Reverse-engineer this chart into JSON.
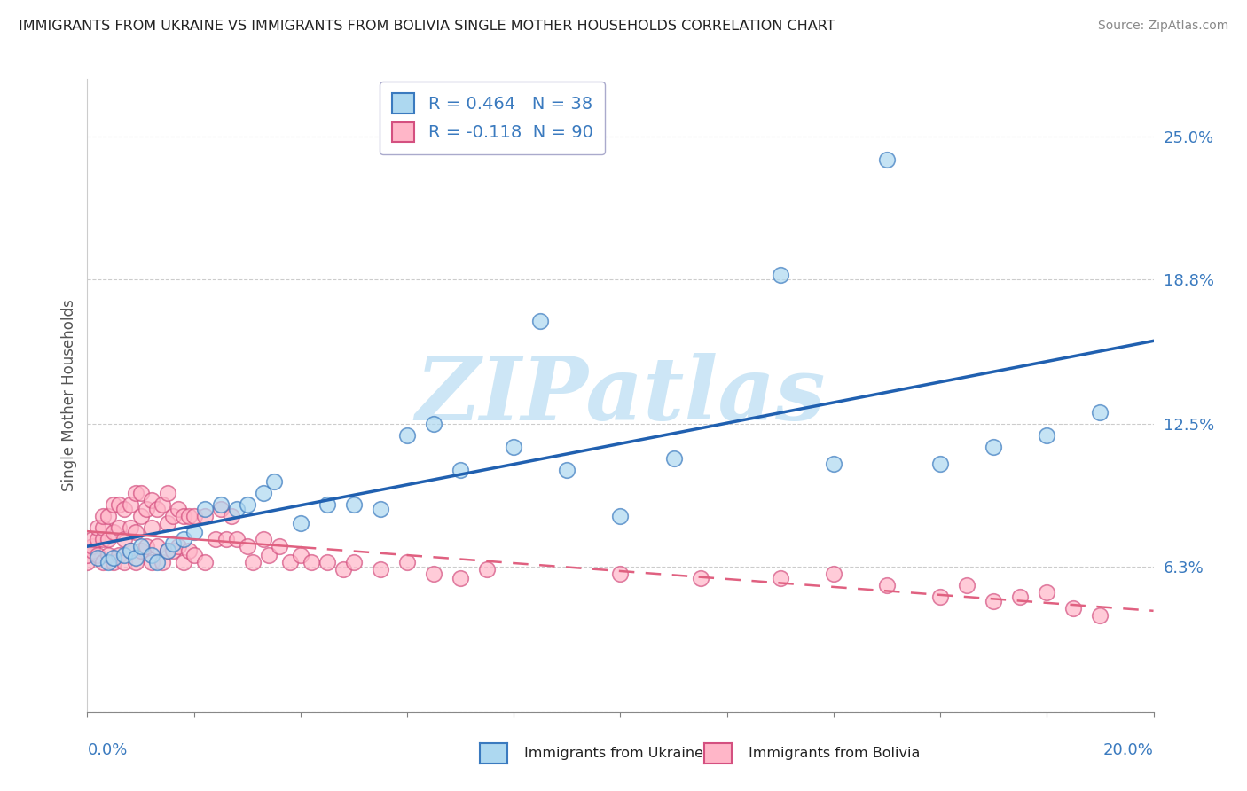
{
  "title": "IMMIGRANTS FROM UKRAINE VS IMMIGRANTS FROM BOLIVIA SINGLE MOTHER HOUSEHOLDS CORRELATION CHART",
  "source": "Source: ZipAtlas.com",
  "ylabel": "Single Mother Households",
  "xlim": [
    0.0,
    0.2
  ],
  "ylim": [
    0.0,
    0.275
  ],
  "ytick_vals": [
    0.0,
    0.063,
    0.125,
    0.188,
    0.25
  ],
  "ytick_labels": [
    "",
    "6.3%",
    "12.5%",
    "18.8%",
    "25.0%"
  ],
  "ukraine_R": 0.464,
  "ukraine_N": 38,
  "bolivia_R": -0.118,
  "bolivia_N": 90,
  "ukraine_color": "#add8f0",
  "bolivia_color": "#ffb6c8",
  "ukraine_edge_color": "#3a7abf",
  "bolivia_edge_color": "#d45080",
  "ukraine_line_color": "#2060b0",
  "bolivia_line_color": "#e06080",
  "watermark_text": "ZIPatlas",
  "ukraine_x": [
    0.002,
    0.004,
    0.005,
    0.007,
    0.008,
    0.009,
    0.01,
    0.012,
    0.013,
    0.015,
    0.016,
    0.018,
    0.02,
    0.022,
    0.025,
    0.028,
    0.03,
    0.033,
    0.035,
    0.04,
    0.045,
    0.05,
    0.055,
    0.06,
    0.065,
    0.07,
    0.08,
    0.085,
    0.09,
    0.1,
    0.11,
    0.13,
    0.14,
    0.15,
    0.16,
    0.17,
    0.18,
    0.19
  ],
  "ukraine_y": [
    0.067,
    0.065,
    0.067,
    0.068,
    0.07,
    0.067,
    0.072,
    0.068,
    0.065,
    0.07,
    0.073,
    0.075,
    0.078,
    0.088,
    0.09,
    0.088,
    0.09,
    0.095,
    0.1,
    0.082,
    0.09,
    0.09,
    0.088,
    0.12,
    0.125,
    0.105,
    0.115,
    0.17,
    0.105,
    0.085,
    0.11,
    0.19,
    0.108,
    0.24,
    0.108,
    0.115,
    0.12,
    0.13
  ],
  "bolivia_x": [
    0.0,
    0.0,
    0.001,
    0.001,
    0.001,
    0.002,
    0.002,
    0.002,
    0.003,
    0.003,
    0.003,
    0.003,
    0.004,
    0.004,
    0.004,
    0.005,
    0.005,
    0.005,
    0.006,
    0.006,
    0.006,
    0.007,
    0.007,
    0.007,
    0.008,
    0.008,
    0.008,
    0.009,
    0.009,
    0.009,
    0.01,
    0.01,
    0.01,
    0.011,
    0.011,
    0.012,
    0.012,
    0.012,
    0.013,
    0.013,
    0.014,
    0.014,
    0.015,
    0.015,
    0.015,
    0.016,
    0.016,
    0.017,
    0.017,
    0.018,
    0.018,
    0.019,
    0.019,
    0.02,
    0.02,
    0.022,
    0.022,
    0.024,
    0.025,
    0.026,
    0.027,
    0.028,
    0.03,
    0.031,
    0.033,
    0.034,
    0.036,
    0.038,
    0.04,
    0.042,
    0.045,
    0.048,
    0.05,
    0.055,
    0.06,
    0.065,
    0.07,
    0.075,
    0.1,
    0.115,
    0.13,
    0.14,
    0.15,
    0.16,
    0.165,
    0.17,
    0.175,
    0.18,
    0.185,
    0.19
  ],
  "bolivia_y": [
    0.065,
    0.068,
    0.07,
    0.072,
    0.075,
    0.068,
    0.075,
    0.08,
    0.065,
    0.075,
    0.08,
    0.085,
    0.068,
    0.075,
    0.085,
    0.065,
    0.078,
    0.09,
    0.068,
    0.08,
    0.09,
    0.065,
    0.075,
    0.088,
    0.07,
    0.08,
    0.09,
    0.065,
    0.078,
    0.095,
    0.07,
    0.085,
    0.095,
    0.072,
    0.088,
    0.065,
    0.08,
    0.092,
    0.072,
    0.088,
    0.065,
    0.09,
    0.07,
    0.082,
    0.095,
    0.07,
    0.085,
    0.072,
    0.088,
    0.065,
    0.085,
    0.07,
    0.085,
    0.068,
    0.085,
    0.065,
    0.085,
    0.075,
    0.088,
    0.075,
    0.085,
    0.075,
    0.072,
    0.065,
    0.075,
    0.068,
    0.072,
    0.065,
    0.068,
    0.065,
    0.065,
    0.062,
    0.065,
    0.062,
    0.065,
    0.06,
    0.058,
    0.062,
    0.06,
    0.058,
    0.058,
    0.06,
    0.055,
    0.05,
    0.055,
    0.048,
    0.05,
    0.052,
    0.045,
    0.042
  ]
}
